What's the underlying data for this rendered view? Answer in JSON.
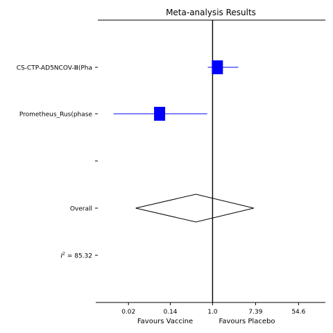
{
  "chart_data": {
    "type": "forest",
    "title": "Meta-analysis Results",
    "xscale": "log",
    "xlim": [
      0.0048,
      190
    ],
    "xticks": [
      0.02,
      0.14,
      1.0,
      7.39,
      54.6
    ],
    "xtick_labels": [
      "0.02",
      "0.14",
      "1.0",
      "7.39",
      "54.6"
    ],
    "xlabel_left": "Favours Vaccine",
    "xlabel_right": "Favours Placebo",
    "reference_line": 1.0,
    "row_labels": [
      "CS-CTP-AD5NCOV-Ⅲ(Pha",
      "Prometheus_Rus(phase",
      "",
      "Overall",
      "I² = 85.32"
    ],
    "i2_prefix": "I",
    "i2_sup": "2",
    "i2_value_text": " = 85.32",
    "studies": [
      {
        "row": 0,
        "label": "CS-CTP-AD5NCOV-Ⅲ(Pha",
        "estimate": 1.25,
        "ci": [
          0.8,
          3.3
        ],
        "weight": 0.5
      },
      {
        "row": 1,
        "label": "Prometheus_Rus(phase",
        "estimate": 0.085,
        "ci": [
          0.01,
          0.78
        ],
        "weight": 0.5
      }
    ],
    "overall": {
      "row": 3,
      "label": "Overall",
      "estimate": 0.46,
      "ci": [
        0.028,
        6.8
      ]
    },
    "colors": {
      "marker": "#0000ff",
      "line": "#000000"
    }
  }
}
